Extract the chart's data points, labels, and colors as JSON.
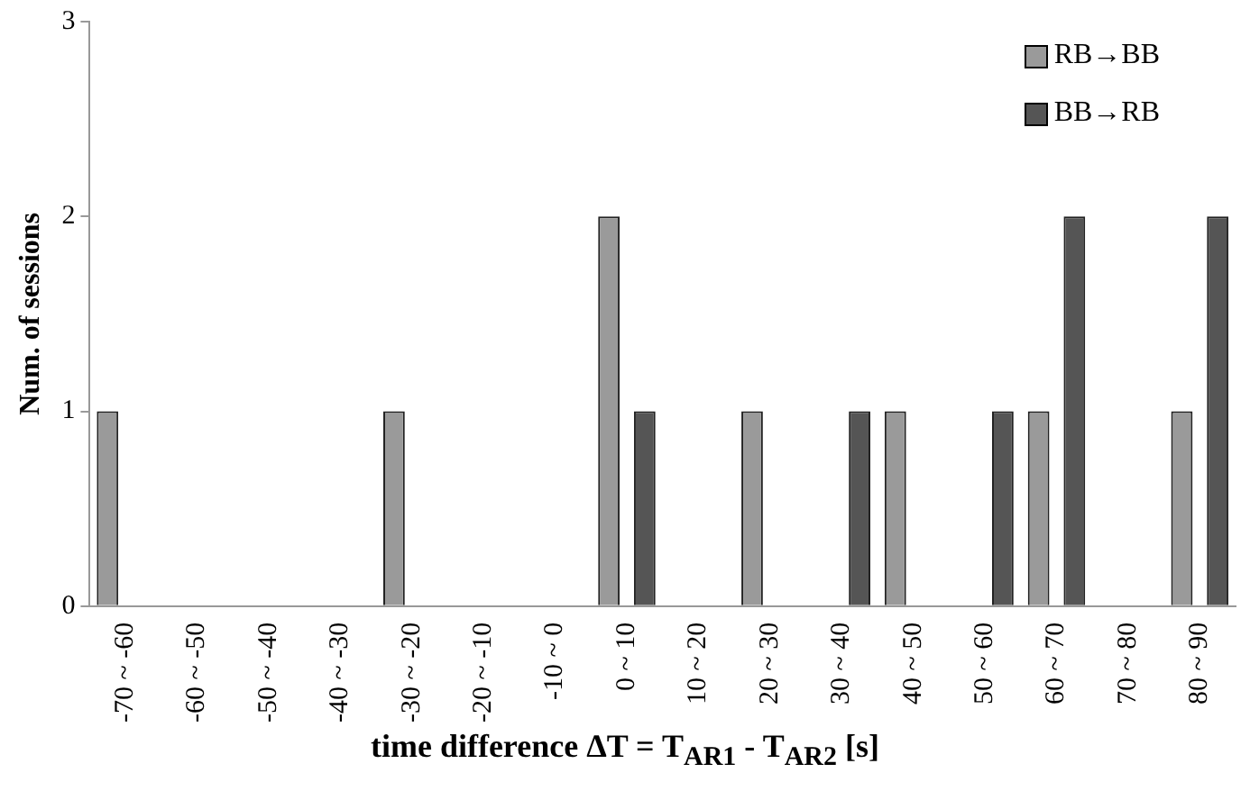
{
  "chart_data": {
    "type": "bar",
    "xlabel": "time difference ΔT = T$_{AR1}$ - T$_{AR2}$ [s]",
    "ylabel": "Num. of sessions",
    "categories": [
      "-70 ~ -60",
      "-60 ~ -50",
      "-50 ~ -40",
      "-40 ~ -30",
      "-30 ~ -20",
      "-20 ~ -10",
      "-10 ~ 0",
      "0 ~ 10",
      "10 ~ 20",
      "20 ~ 30",
      "30 ~ 40",
      "40 ~ 50",
      "50 ~ 60",
      "60 ~ 70",
      "70 ~ 80",
      "80 ~ 90"
    ],
    "series": [
      {
        "name": "RB→BB",
        "color": "#9a9a9a",
        "values": [
          1,
          0,
          0,
          0,
          1,
          0,
          0,
          2,
          0,
          1,
          0,
          1,
          0,
          1,
          0,
          1
        ]
      },
      {
        "name": "BB→RB",
        "color": "#555555",
        "values": [
          0,
          0,
          0,
          0,
          0,
          0,
          0,
          1,
          0,
          0,
          1,
          0,
          1,
          2,
          0,
          2
        ]
      }
    ],
    "ylim": [
      0,
      3
    ],
    "yticks": [
      0,
      1,
      2,
      3
    ],
    "grid": false,
    "legend": "top right"
  }
}
